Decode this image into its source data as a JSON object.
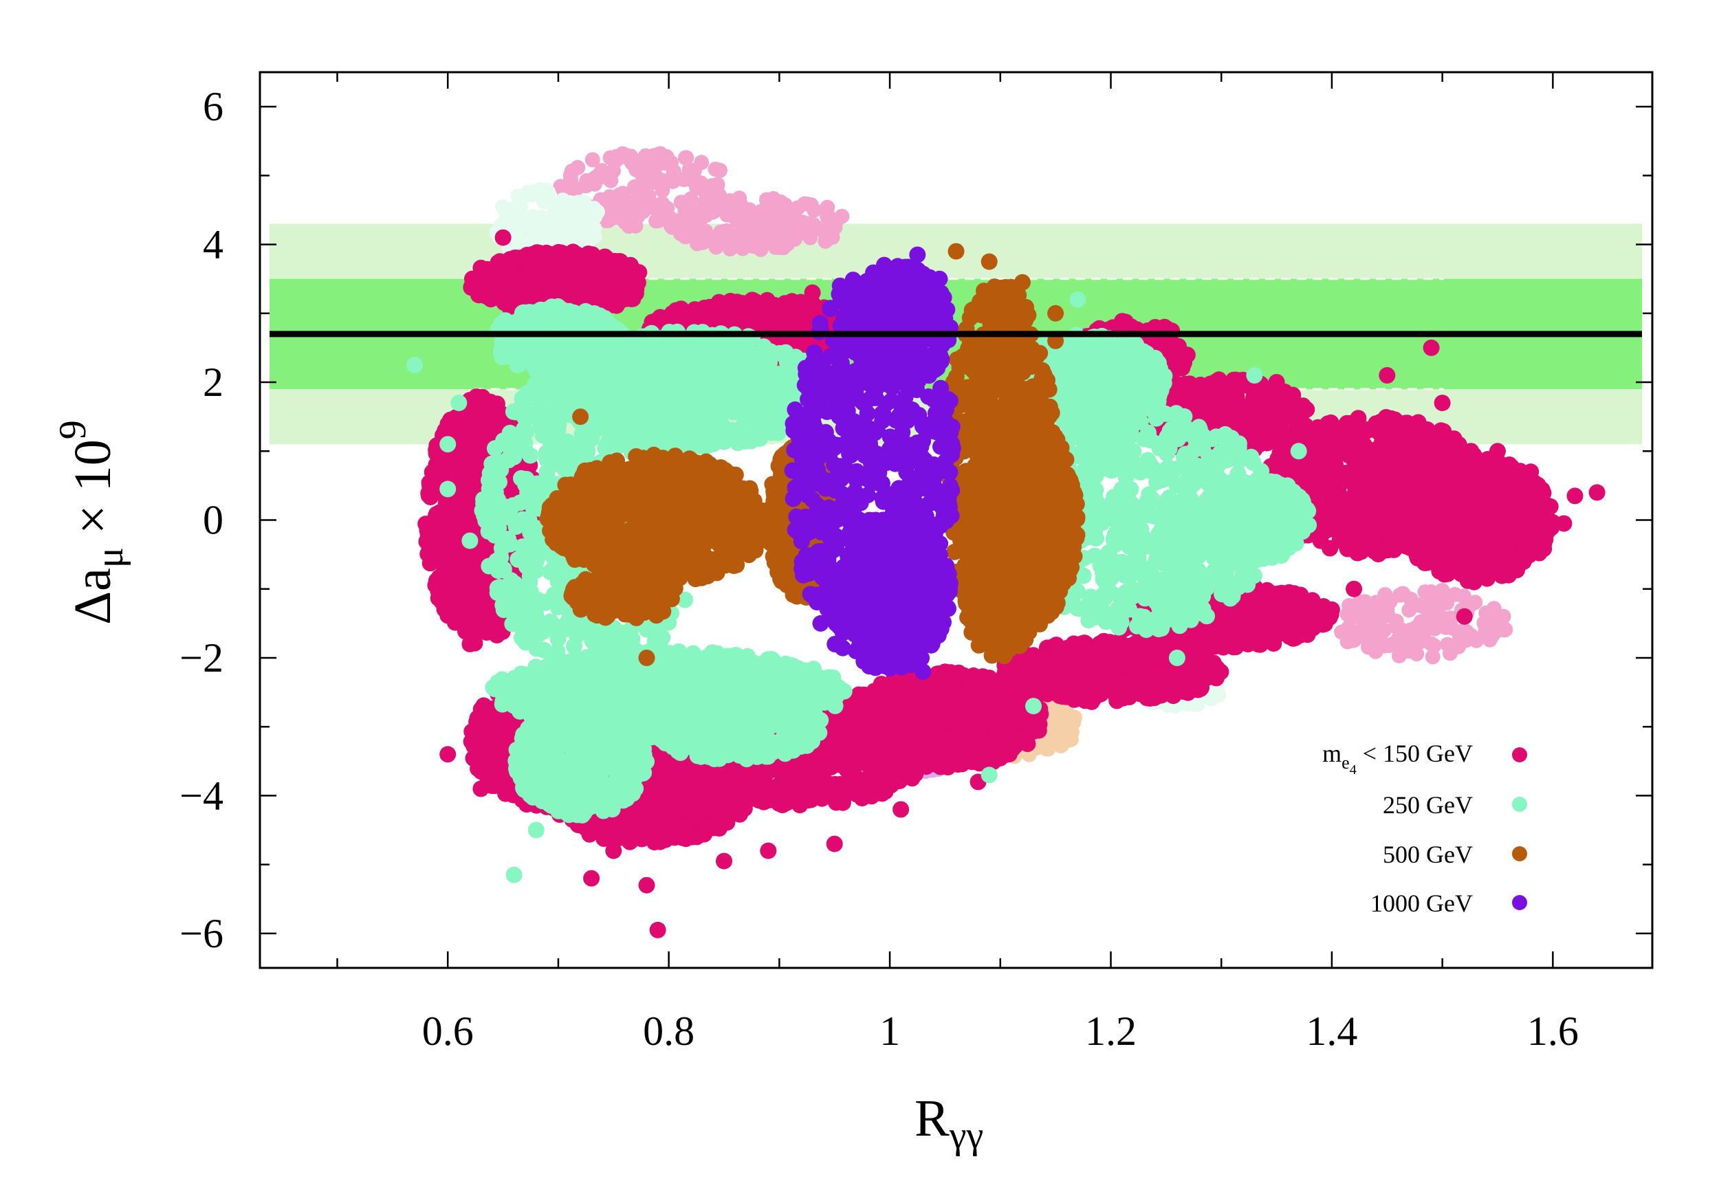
{
  "chart_data": {
    "type": "scatter",
    "title": "",
    "xlabel": "R",
    "xlabel_sub": "γγ",
    "ylabel_prefix": "Δa",
    "ylabel_sub": "μ",
    "ylabel_times": " × 10",
    "ylabel_exp": "9",
    "xlim": [
      0.43,
      1.69
    ],
    "ylim": [
      -6.5,
      6.5
    ],
    "x_ticks": [
      0.6,
      0.8,
      1.0,
      1.2,
      1.4,
      1.6
    ],
    "x_tick_labels": [
      "0.6",
      "0.8",
      "1",
      "1.2",
      "1.4",
      "1.6"
    ],
    "y_ticks": [
      -6,
      -4,
      -2,
      0,
      2,
      4,
      6
    ],
    "y_tick_labels": [
      "−6",
      "−4",
      "−2",
      "0",
      "2",
      "4",
      "6"
    ],
    "x_minor_step": 0.1,
    "y_minor_step": 1,
    "bands": [
      {
        "name": "2-sigma",
        "y_range": [
          1.1,
          4.3
        ],
        "color": "#d8f5d0"
      },
      {
        "name": "1-sigma",
        "y_range": [
          1.9,
          3.5
        ],
        "color": "#86f07c"
      }
    ],
    "central_value": 2.7,
    "central_line_color": "#000000",
    "dashed_levels": [
      3.5,
      1.9,
      1.1
    ],
    "legend_position": "bottom-right",
    "series": [
      {
        "name": "m_e4 < 150 GeV",
        "legend_main": "m",
        "legend_sub": "e",
        "legend_subsub": "4",
        "legend_rest": " < 150 GeV",
        "color": "#e0096f",
        "faint_color": "#f4a3cc",
        "points": [
          [
            0.6,
            -3.4
          ],
          [
            0.63,
            -3.9
          ],
          [
            0.65,
            4.1
          ],
          [
            0.62,
            -1.8
          ],
          [
            0.79,
            -5.95
          ],
          [
            0.78,
            -5.3
          ],
          [
            0.73,
            -5.2
          ],
          [
            0.75,
            -4.8
          ],
          [
            0.85,
            -4.95
          ],
          [
            0.89,
            -4.8
          ],
          [
            0.95,
            -4.7
          ],
          [
            1.01,
            -4.2
          ],
          [
            1.08,
            -3.8
          ],
          [
            1.25,
            2.5
          ],
          [
            1.35,
            2.0
          ],
          [
            1.49,
            2.5
          ],
          [
            1.45,
            2.1
          ],
          [
            1.5,
            1.7
          ],
          [
            1.55,
            1.0
          ],
          [
            1.58,
            0.7
          ],
          [
            1.61,
            -0.05
          ],
          [
            1.64,
            0.4
          ],
          [
            1.62,
            0.35
          ],
          [
            1.56,
            -0.8
          ],
          [
            1.52,
            -1.4
          ],
          [
            1.42,
            -1.0
          ],
          [
            1.4,
            -1.3
          ],
          [
            1.3,
            -1.3
          ],
          [
            1.2,
            -2.1
          ],
          [
            1.18,
            -2.6
          ],
          [
            0.93,
            3.3
          ],
          [
            0.89,
            3.0
          ]
        ],
        "clusters": [
          {
            "cx": 0.88,
            "cy": 2.75,
            "rx": 0.1,
            "ry": 0.45
          },
          {
            "cx": 0.7,
            "cy": 3.45,
            "rx": 0.08,
            "ry": 0.45
          },
          {
            "cx": 0.63,
            "cy": 0.0,
            "rx": 0.05,
            "ry": 1.8
          },
          {
            "cx": 0.7,
            "cy": -3.2,
            "rx": 0.08,
            "ry": 1.0
          },
          {
            "cx": 0.78,
            "cy": -3.8,
            "rx": 0.1,
            "ry": 0.9
          },
          {
            "cx": 0.92,
            "cy": -3.3,
            "rx": 0.12,
            "ry": 0.85
          },
          {
            "cx": 1.05,
            "cy": -2.9,
            "rx": 0.09,
            "ry": 0.7
          },
          {
            "cx": 1.2,
            "cy": -2.2,
            "rx": 0.1,
            "ry": 0.45
          },
          {
            "cx": 1.3,
            "cy": 1.5,
            "rx": 0.08,
            "ry": 0.55
          },
          {
            "cx": 1.3,
            "cy": -1.4,
            "rx": 0.1,
            "ry": 0.45
          },
          {
            "cx": 1.44,
            "cy": 0.5,
            "rx": 0.1,
            "ry": 1.0
          },
          {
            "cx": 1.53,
            "cy": 0.0,
            "rx": 0.07,
            "ry": 0.9
          },
          {
            "cx": 1.22,
            "cy": 2.4,
            "rx": 0.05,
            "ry": 0.5
          }
        ],
        "faint_clusters": [
          {
            "cx": 0.78,
            "cy": 4.8,
            "rx": 0.08,
            "ry": 0.55
          },
          {
            "cx": 0.88,
            "cy": 4.3,
            "rx": 0.08,
            "ry": 0.4
          },
          {
            "cx": 1.02,
            "cy": -3.4,
            "rx": 0.04,
            "ry": 0.25
          },
          {
            "cx": 1.48,
            "cy": -1.5,
            "rx": 0.08,
            "ry": 0.5
          }
        ]
      },
      {
        "name": "250 GeV",
        "legend_text": "250 GeV",
        "color": "#87f6c1",
        "faint_color": "#e6fbef",
        "points": [
          [
            0.57,
            2.25
          ],
          [
            0.6,
            0.45
          ],
          [
            0.66,
            -5.15
          ],
          [
            0.61,
            1.7
          ],
          [
            0.6,
            1.1
          ],
          [
            0.62,
            -0.3
          ],
          [
            0.68,
            -4.5
          ],
          [
            1.33,
            2.1
          ],
          [
            1.37,
            1.0
          ],
          [
            1.36,
            0.5
          ],
          [
            1.26,
            -2.0
          ],
          [
            1.17,
            3.2
          ],
          [
            1.13,
            -2.7
          ],
          [
            1.09,
            -3.7
          ]
        ],
        "clusters": [
          {
            "cx": 0.73,
            "cy": 0.0,
            "rx": 0.1,
            "ry": 2.3
          },
          {
            "cx": 0.82,
            "cy": 1.9,
            "rx": 0.12,
            "ry": 0.85
          },
          {
            "cx": 0.7,
            "cy": 2.6,
            "rx": 0.06,
            "ry": 0.5
          },
          {
            "cx": 0.8,
            "cy": -2.5,
            "rx": 0.16,
            "ry": 0.6
          },
          {
            "cx": 0.72,
            "cy": -3.5,
            "rx": 0.06,
            "ry": 0.8
          },
          {
            "cx": 0.86,
            "cy": -3.0,
            "rx": 0.08,
            "ry": 0.5
          },
          {
            "cx": 1.23,
            "cy": 0.0,
            "rx": 0.12,
            "ry": 1.6
          },
          {
            "cx": 1.18,
            "cy": 2.0,
            "rx": 0.07,
            "ry": 0.7
          },
          {
            "cx": 1.33,
            "cy": 0.0,
            "rx": 0.05,
            "ry": 0.6
          }
        ],
        "faint_clusters": [
          {
            "cx": 0.69,
            "cy": 4.3,
            "rx": 0.05,
            "ry": 0.5
          },
          {
            "cx": 1.26,
            "cy": -2.5,
            "rx": 0.04,
            "ry": 0.2
          }
        ]
      },
      {
        "name": "500 GeV",
        "legend_text": "500 GeV",
        "color": "#b85a0b",
        "faint_color": "#f5cfa8",
        "points": [
          [
            0.72,
            1.5
          ],
          [
            0.78,
            -2.0
          ],
          [
            1.06,
            3.9
          ],
          [
            1.09,
            3.75
          ],
          [
            1.12,
            3.45
          ],
          [
            1.15,
            3.0
          ],
          [
            1.15,
            2.6
          ]
        ],
        "clusters": [
          {
            "cx": 0.79,
            "cy": 0.0,
            "rx": 0.1,
            "ry": 0.95
          },
          {
            "cx": 0.76,
            "cy": -1.1,
            "rx": 0.05,
            "ry": 0.35
          },
          {
            "cx": 0.92,
            "cy": 0.0,
            "rx": 0.03,
            "ry": 1.15
          },
          {
            "cx": 1.1,
            "cy": 0.7,
            "rx": 0.05,
            "ry": 2.75
          },
          {
            "cx": 1.12,
            "cy": 0.0,
            "rx": 0.05,
            "ry": 1.6
          }
        ],
        "faint_clusters": [
          {
            "cx": 1.12,
            "cy": -3.0,
            "rx": 0.05,
            "ry": 0.45
          }
        ]
      },
      {
        "name": "1000 GeV",
        "legend_text": "1000 GeV",
        "color": "#7a10e0",
        "faint_color": "#dcaaf0",
        "points": [
          [
            1.025,
            3.85
          ],
          [
            0.995,
            3.7
          ],
          [
            1.045,
            3.5
          ],
          [
            0.955,
            3.4
          ],
          [
            1.0,
            -2.15
          ],
          [
            1.03,
            -2.2
          ]
        ],
        "clusters": [
          {
            "cx": 0.985,
            "cy": 0.7,
            "rx": 0.075,
            "ry": 2.9
          },
          {
            "cx": 1.01,
            "cy": 2.8,
            "rx": 0.045,
            "ry": 0.9
          },
          {
            "cx": 1.005,
            "cy": -1.0,
            "rx": 0.05,
            "ry": 1.15
          }
        ],
        "faint_clusters": [
          {
            "cx": 1.03,
            "cy": -3.4,
            "rx": 0.03,
            "ry": 0.25
          }
        ]
      }
    ]
  }
}
